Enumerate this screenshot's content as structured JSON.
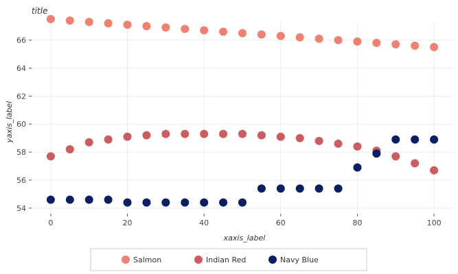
{
  "chart_data": {
    "type": "scatter",
    "title": "title",
    "xlabel": "xaxis_label",
    "ylabel": "yaxis_label",
    "xlim": [
      -5,
      105
    ],
    "ylim": [
      53.6,
      67.3
    ],
    "x_ticks": [
      0,
      20,
      40,
      60,
      80,
      100
    ],
    "y_ticks": [
      54,
      56,
      58,
      60,
      62,
      64,
      66
    ],
    "grid": true,
    "legend_position": "bottom",
    "x": [
      0,
      5,
      10,
      15,
      20,
      25,
      30,
      35,
      40,
      45,
      50,
      55,
      60,
      65,
      70,
      75,
      80,
      85,
      90,
      95,
      100
    ],
    "series": [
      {
        "name": "Salmon",
        "color": "#F08070",
        "values": [
          67.5,
          67.4,
          67.3,
          67.2,
          67.1,
          67.0,
          66.9,
          66.8,
          66.7,
          66.6,
          66.5,
          66.4,
          66.3,
          66.2,
          66.1,
          66.0,
          65.9,
          65.8,
          65.7,
          65.6,
          65.5
        ]
      },
      {
        "name": "Indian Red",
        "color": "#CD5C5C",
        "values": [
          57.7,
          58.2,
          58.7,
          58.9,
          59.1,
          59.2,
          59.3,
          59.3,
          59.3,
          59.3,
          59.3,
          59.2,
          59.1,
          59.0,
          58.8,
          58.6,
          58.4,
          58.1,
          57.7,
          57.2,
          56.7
        ]
      },
      {
        "name": "Navy Blue",
        "color": "#0A1F63",
        "values": [
          54.6,
          54.6,
          54.6,
          54.6,
          54.4,
          54.4,
          54.4,
          54.4,
          54.4,
          54.4,
          54.4,
          55.4,
          55.4,
          55.4,
          55.4,
          55.4,
          56.9,
          57.9,
          58.9,
          58.9,
          58.9
        ]
      }
    ]
  }
}
